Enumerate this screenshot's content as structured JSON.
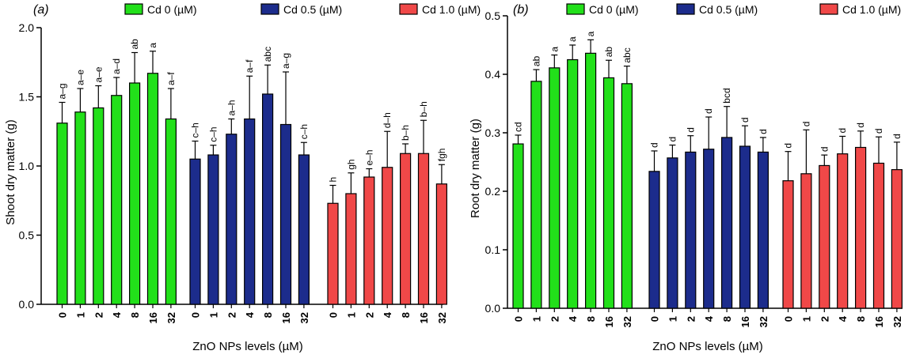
{
  "chart_data": [
    {
      "type": "bar",
      "panel_label": "(a)",
      "ylabel": "Shoot dry matter (g)",
      "xlabel": "ZnO NPs levels (µM)",
      "ylim": [
        0,
        2.0
      ],
      "yticks": [
        "0.0",
        "0.5",
        "1.0",
        "1.5",
        "2.0"
      ],
      "grid": false,
      "legend_position": "top",
      "categories": [
        "0",
        "1",
        "2",
        "4",
        "8",
        "16",
        "32"
      ],
      "series": [
        {
          "name": "Cd 0 (µM)",
          "color": "#22e01a",
          "values": [
            1.31,
            1.39,
            1.42,
            1.51,
            1.6,
            1.67,
            1.34
          ],
          "errors": [
            0.15,
            0.17,
            0.16,
            0.13,
            0.22,
            0.16,
            0.22
          ],
          "letters": [
            "a–g",
            "a–e",
            "a–e",
            "a–d",
            "ab",
            "a",
            "a–f"
          ]
        },
        {
          "name": "Cd 0.5 (µM)",
          "color": "#1c2c8c",
          "values": [
            1.05,
            1.08,
            1.23,
            1.34,
            1.52,
            1.3,
            1.08
          ],
          "errors": [
            0.13,
            0.07,
            0.11,
            0.31,
            0.21,
            0.38,
            0.09
          ],
          "letters": [
            "c–h",
            "c–h",
            "a–h",
            "a–f",
            "abc",
            "a–g",
            "c–h"
          ]
        },
        {
          "name": "Cd 1.0 (µM)",
          "color": "#f04848",
          "values": [
            0.73,
            0.8,
            0.92,
            0.99,
            1.09,
            1.09,
            0.87
          ],
          "errors": [
            0.13,
            0.15,
            0.06,
            0.26,
            0.07,
            0.24,
            0.14
          ],
          "letters": [
            "h",
            "gh",
            "e–h",
            "d–h",
            "b–h",
            "b–h",
            "fgh"
          ]
        }
      ]
    },
    {
      "type": "bar",
      "panel_label": "(b)",
      "ylabel": "Root dry matter (g)",
      "xlabel": "ZnO NPs levels (µM)",
      "ylim": [
        0,
        0.5
      ],
      "yticks": [
        "0.0",
        "0.1",
        "0.2",
        "0.3",
        "0.4",
        "0.5"
      ],
      "grid": false,
      "legend_position": "top",
      "categories": [
        "0",
        "1",
        "2",
        "4",
        "8",
        "16",
        "32"
      ],
      "series": [
        {
          "name": "Cd 0 (µM)",
          "color": "#22e01a",
          "values": [
            0.281,
            0.388,
            0.411,
            0.425,
            0.436,
            0.394,
            0.384
          ],
          "errors": [
            0.015,
            0.02,
            0.022,
            0.025,
            0.023,
            0.03,
            0.03
          ],
          "letters": [
            "cd",
            "ab",
            "a",
            "a",
            "a",
            "ab",
            "abc"
          ]
        },
        {
          "name": "Cd 0.5 (µM)",
          "color": "#1c2c8c",
          "values": [
            0.234,
            0.257,
            0.267,
            0.272,
            0.292,
            0.277,
            0.267
          ],
          "errors": [
            0.035,
            0.022,
            0.028,
            0.055,
            0.053,
            0.035,
            0.025
          ],
          "letters": [
            "d",
            "d",
            "d",
            "d",
            "bcd",
            "d",
            "d"
          ]
        },
        {
          "name": "Cd 1.0 (µM)",
          "color": "#f04848",
          "values": [
            0.218,
            0.23,
            0.244,
            0.264,
            0.275,
            0.248,
            0.237
          ],
          "errors": [
            0.05,
            0.075,
            0.018,
            0.03,
            0.028,
            0.045,
            0.047
          ],
          "letters": [
            "d",
            "d",
            "d",
            "d",
            "d",
            "d",
            "d"
          ]
        }
      ]
    }
  ]
}
